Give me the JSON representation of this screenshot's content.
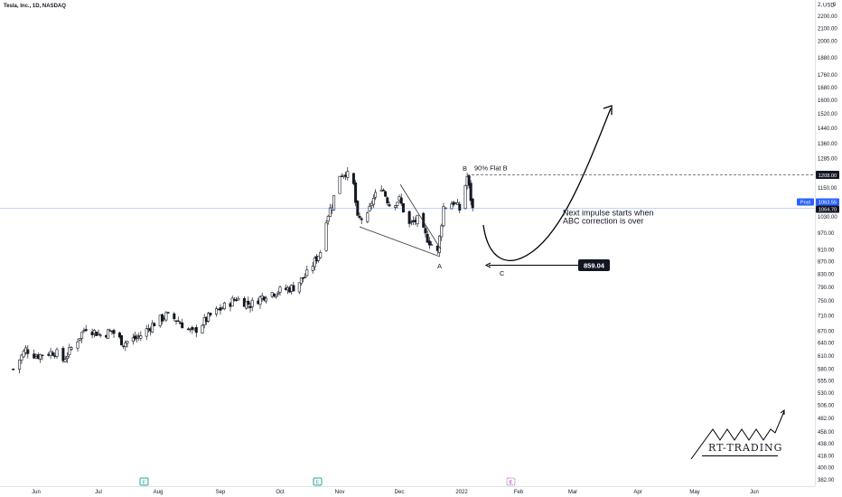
{
  "header": {
    "symbol_title": "Tesla, Inc., 1D, NASDAQ"
  },
  "price_axis": {
    "currency": "USD",
    "top_label": "2,",
    "top_right": "0",
    "ticks": [
      "2200.00",
      "2100.00",
      "2000.00",
      "1880.00",
      "1760.00",
      "1680.00",
      "1600.00",
      "1520.00",
      "1440.00",
      "1360.00",
      "1285.00",
      "1208.00",
      "1150.00",
      "1090.00",
      "1030.00",
      "970.00",
      "910.00",
      "870.00",
      "830.00",
      "790.00",
      "750.00",
      "710.00",
      "670.00",
      "640.00",
      "610.00",
      "580.00",
      "555.00",
      "530.00",
      "506.00",
      "482.00",
      "458.00",
      "438.00",
      "418.00",
      "400.00",
      "382.00"
    ],
    "scale": "log",
    "range": [
      382,
      2260
    ]
  },
  "time_axis": {
    "labels": [
      "Jun",
      "Jul",
      "Aug",
      "Sep",
      "Oct",
      "Nov",
      "Dec",
      "2022",
      "Feb",
      "Mar",
      "Apr",
      "May",
      "Jun"
    ]
  },
  "price_tags": {
    "level_line": "1208.00",
    "post_label": "Post",
    "post_value": "1063.55",
    "last_value": "1064.70"
  },
  "annotations": {
    "wave_a": "A",
    "wave_b": "B",
    "wave_c": "C",
    "flat_note": "90% Flat B",
    "impulse_line1": "Next impulse starts when",
    "impulse_line2": "ABC correction is over",
    "target_price": "859.04"
  },
  "event_markers": [
    {
      "label": "E",
      "kind": "earnings"
    },
    {
      "label": "E",
      "kind": "earnings"
    },
    {
      "label": "E",
      "kind": "earnings-upcoming"
    }
  ],
  "logo": {
    "text": "RT-TRADING"
  },
  "colors": {
    "bull": "#ffffff",
    "bear": "#131722",
    "accent": "#2962ff",
    "earnings": "#26a69a",
    "earnings_upcoming": "#9c27b0",
    "tag_dark": "#131722"
  },
  "chart_data": {
    "type": "candlestick",
    "title": "Tesla, Inc., 1D, NASDAQ",
    "yscale": "log",
    "ylim": [
      382,
      2260
    ],
    "x_ticks": [
      "Jun",
      "Jul",
      "Aug",
      "Sep",
      "Oct",
      "Nov",
      "Dec",
      "2022",
      "Feb",
      "Mar",
      "Apr",
      "May",
      "Jun"
    ],
    "waypoints": [
      [
        "2021-05-21",
        580
      ],
      [
        "2021-05-27",
        625
      ],
      [
        "2021-06-01",
        610
      ],
      [
        "2021-06-10",
        620
      ],
      [
        "2021-06-14",
        600
      ],
      [
        "2021-06-25",
        680
      ],
      [
        "2021-07-02",
        660
      ],
      [
        "2021-07-08",
        670
      ],
      [
        "2021-07-14",
        640
      ],
      [
        "2021-07-22",
        655
      ],
      [
        "2021-07-30",
        690
      ],
      [
        "2021-08-05",
        710
      ],
      [
        "2021-08-10",
        700
      ],
      [
        "2021-08-18",
        665
      ],
      [
        "2021-08-27",
        710
      ],
      [
        "2021-09-03",
        735
      ],
      [
        "2021-09-09",
        758
      ],
      [
        "2021-09-16",
        740
      ],
      [
        "2021-09-24",
        770
      ],
      [
        "2021-10-01",
        780
      ],
      [
        "2021-10-08",
        790
      ],
      [
        "2021-10-15",
        830
      ],
      [
        "2021-10-22",
        905
      ],
      [
        "2021-10-25",
        1025
      ],
      [
        "2021-10-28",
        1080
      ],
      [
        "2021-11-01",
        1210
      ],
      [
        "2021-11-04",
        1220
      ],
      [
        "2021-11-08",
        1160
      ],
      [
        "2021-11-10",
        1020
      ],
      [
        "2021-11-15",
        1030
      ],
      [
        "2021-11-17",
        1090
      ],
      [
        "2021-11-22",
        1160
      ],
      [
        "2021-11-26",
        1080
      ],
      [
        "2021-12-01",
        1100
      ],
      [
        "2021-12-06",
        1000
      ],
      [
        "2021-12-10",
        1020
      ],
      [
        "2021-12-14",
        960
      ],
      [
        "2021-12-20",
        900
      ],
      [
        "2021-12-23",
        1070
      ],
      [
        "2021-12-28",
        1090
      ],
      [
        "2021-12-31",
        1060
      ],
      [
        "2022-01-04",
        1200
      ],
      [
        "2022-01-07",
        1060
      ]
    ],
    "levels": {
      "flat_b_line": 1208.0,
      "post_price": 1063.55,
      "last_price": 1064.7,
      "target_c": 859.04
    }
  }
}
